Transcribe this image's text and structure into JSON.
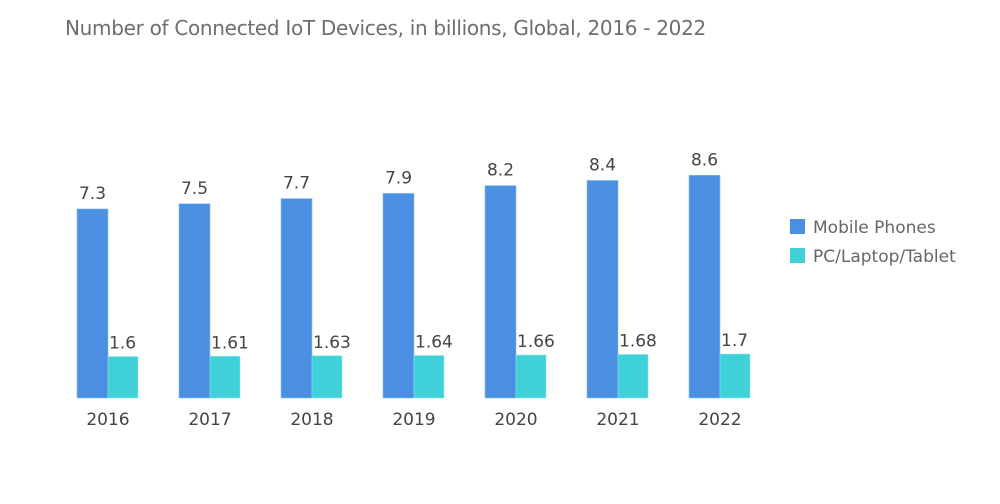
{
  "chart_data": {
    "type": "bar",
    "title": "Number of Connected IoT Devices, in billions, Global, 2016 - 2022",
    "xlabel": "",
    "ylabel": "",
    "categories": [
      "2016",
      "2017",
      "2018",
      "2019",
      "2020",
      "2021",
      "2022"
    ],
    "series": [
      {
        "name": "Mobile Phones",
        "color": "#4a8fe2",
        "values": [
          7.3,
          7.5,
          7.7,
          7.9,
          8.2,
          8.4,
          8.6
        ],
        "labels": [
          "7.3",
          "7.5",
          "7.7",
          "7.9",
          "8.2",
          "8.4",
          "8.6"
        ]
      },
      {
        "name": "PC/Laptop/Tablet",
        "color": "#3fd0d8",
        "values": [
          1.6,
          1.61,
          1.63,
          1.64,
          1.66,
          1.68,
          1.7
        ],
        "labels": [
          "1.6",
          "1.61",
          "1.63",
          "1.64",
          "1.66",
          "1.68",
          "1.7"
        ]
      }
    ],
    "ylim": [
      0,
      9
    ],
    "grid": false,
    "legend": "right"
  }
}
